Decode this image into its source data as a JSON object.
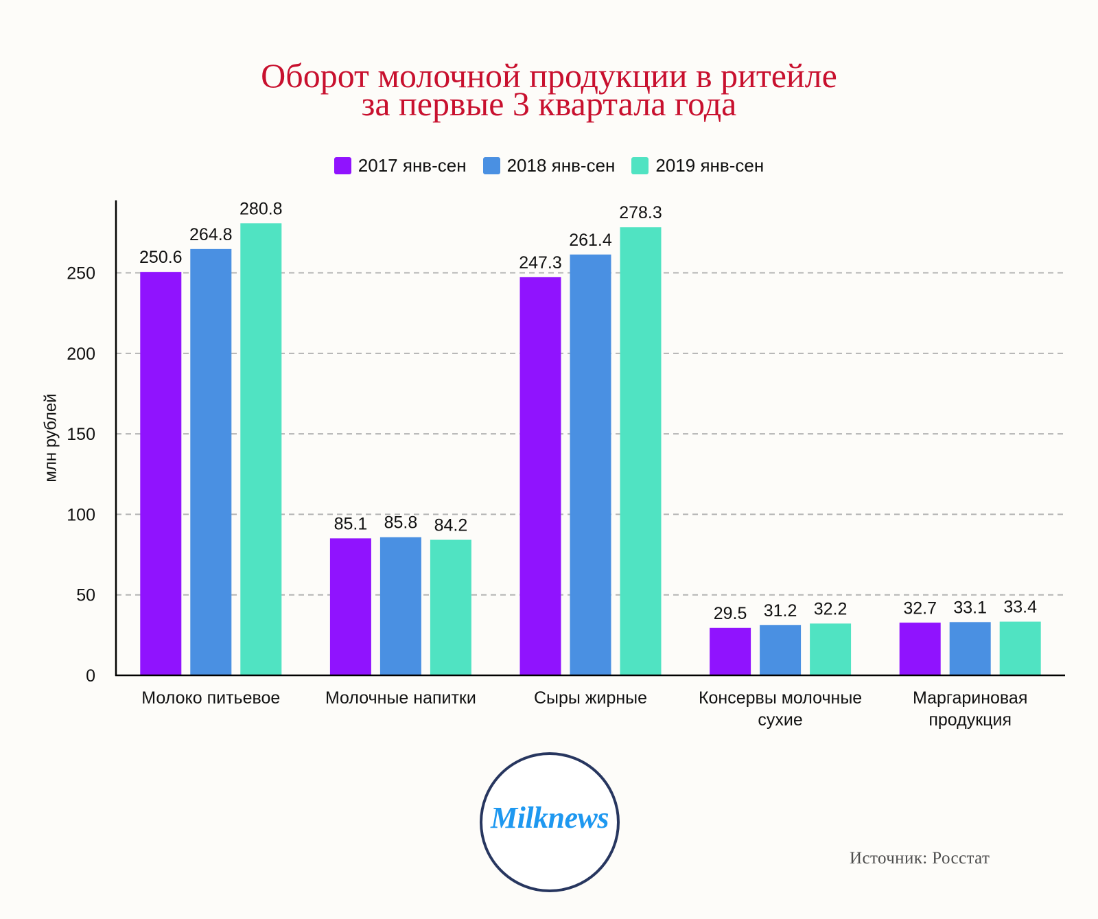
{
  "chart_data": {
    "type": "bar",
    "title": [
      "Оборот молочной продукции в ритейле",
      "за первые 3 квартала года"
    ],
    "xlabel": "",
    "ylabel": "млн рублей",
    "ylim": [
      0,
      295
    ],
    "yticks": [
      0,
      50,
      100,
      150,
      200,
      250
    ],
    "grid": "horizontal dashed",
    "legend_position": "top-center",
    "data_labels": true,
    "categories": [
      "Молоко питьевое",
      "Молочные напитки",
      "Сыры жирные",
      "Консервы молочные сухие",
      "Маргариновая продукция"
    ],
    "series": [
      {
        "name": "2017 янв-сен",
        "color": "#9013FE",
        "values": [
          250.6,
          85.1,
          247.3,
          29.5,
          32.7
        ]
      },
      {
        "name": "2018 янв-сен",
        "color": "#4A90E2",
        "values": [
          264.8,
          85.8,
          261.4,
          31.2,
          33.1
        ]
      },
      {
        "name": "2019 янв-сен",
        "color": "#50E3C2",
        "values": [
          280.8,
          84.2,
          278.3,
          32.2,
          33.4
        ]
      }
    ]
  },
  "logo": {
    "text": "Milknews"
  },
  "source": "Источник: Росстат"
}
